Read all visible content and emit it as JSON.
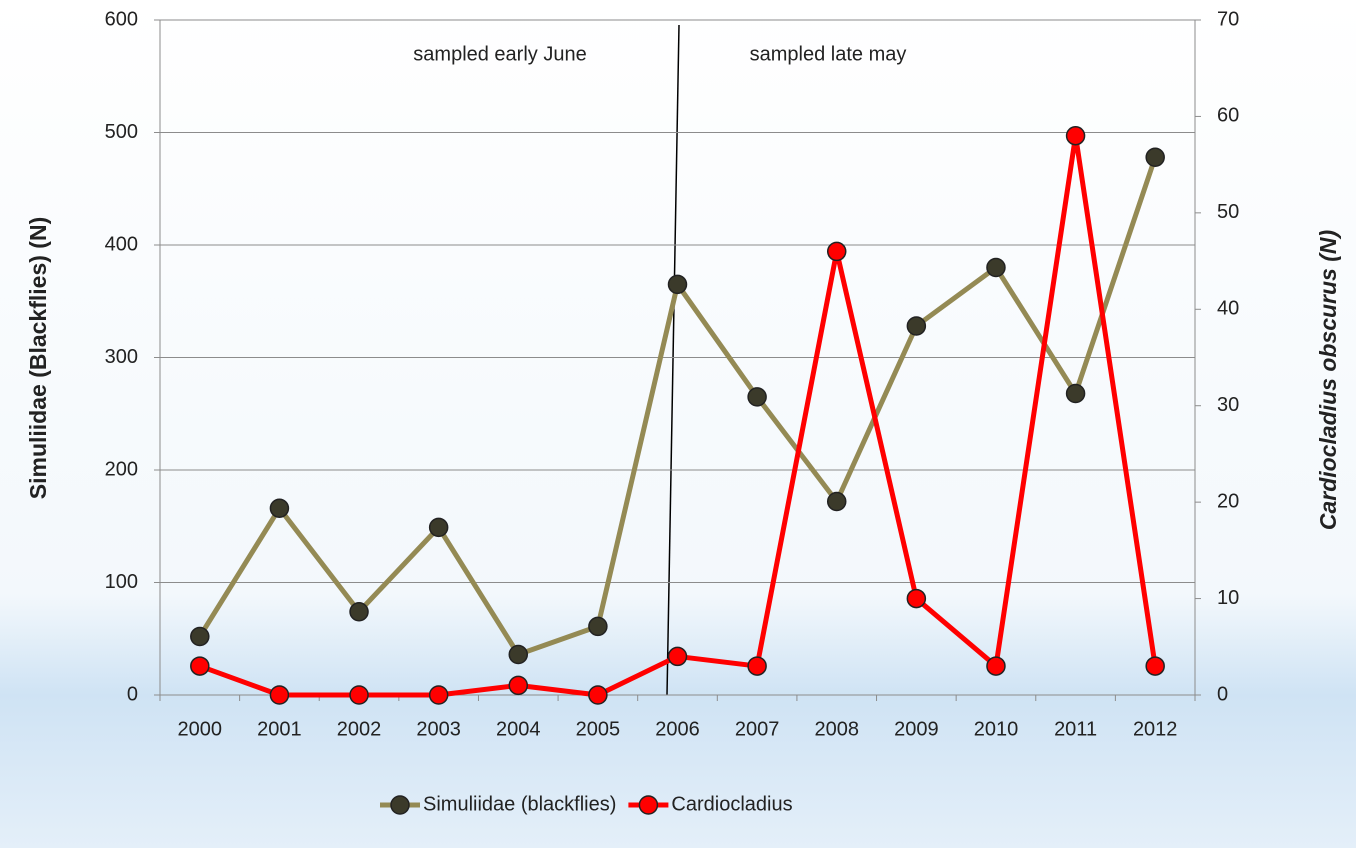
{
  "chart_data": {
    "type": "line",
    "categories": [
      "2000",
      "2001",
      "2002",
      "2003",
      "2004",
      "2005",
      "2006",
      "2007",
      "2008",
      "2009",
      "2010",
      "2011",
      "2012"
    ],
    "series": [
      {
        "name": "Simuliidae (blackflies)",
        "color": "#948a54",
        "marker_color": "#3b3a2a",
        "values": [
          52,
          166,
          74,
          149,
          36,
          61,
          365,
          265,
          172,
          328,
          380,
          268,
          478
        ]
      },
      {
        "name": "Cardiocladius",
        "color": "#ff0000",
        "marker_color": "#ff0000",
        "axis": "y2",
        "values": [
          3,
          0,
          0,
          0,
          1,
          0,
          4,
          3,
          46,
          10,
          3,
          58,
          3
        ]
      }
    ],
    "ylabel": "Simuliidae (Blackflies) (N)",
    "y2label": "Cardiocladius obscurus (N)",
    "annotations": [
      "sampled early June",
      "sampled late may"
    ],
    "ylim": [
      0,
      600
    ],
    "yticks": [
      0,
      100,
      200,
      300,
      400,
      500,
      600
    ],
    "y2lim": [
      0,
      70
    ],
    "y2ticks": [
      0,
      10,
      20,
      30,
      40,
      50,
      60,
      70
    ],
    "grid": true,
    "legend": "bottom"
  }
}
